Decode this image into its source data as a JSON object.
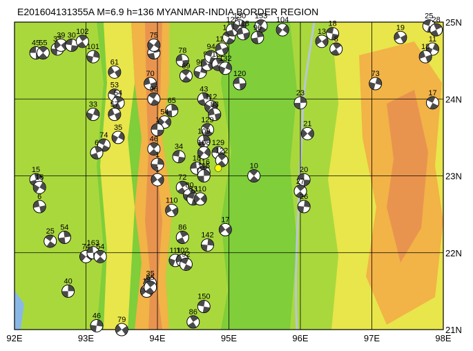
{
  "title": "E201604131355A  M=6.9  h=136  MYANMAR-INDIA BORDER REGION",
  "lon_range": [
    92,
    98
  ],
  "lat_range": [
    21,
    25
  ],
  "x_ticks": [
    {
      "lon": 92,
      "label": "92E"
    },
    {
      "lon": 93,
      "label": "93E"
    },
    {
      "lon": 94,
      "label": "94E"
    },
    {
      "lon": 95,
      "label": "95E"
    },
    {
      "lon": 96,
      "label": "96E"
    },
    {
      "lon": 97,
      "label": "97E"
    },
    {
      "lon": 98,
      "label": "98E"
    }
  ],
  "y_ticks": [
    {
      "lat": 25,
      "label": "25N"
    },
    {
      "lat": 24,
      "label": "24N"
    },
    {
      "lat": 23,
      "label": "23N"
    },
    {
      "lat": 22,
      "label": "22N"
    },
    {
      "lat": 21,
      "label": "21N"
    }
  ],
  "colors": {
    "low_plain": "#7fce3a",
    "mid_plain": "#a9d83d",
    "hills": "#e8e64a",
    "high": "#f2b347",
    "peaks": "#e8944f",
    "sea": "#8ab8e6",
    "river": "#b8c6d8",
    "grid": "#000000",
    "beachball_fill": "#4a4a4a",
    "main_event": "#ffff00"
  },
  "events": [
    {
      "lon": 92.3,
      "lat": 24.6,
      "depth": "45"
    },
    {
      "lon": 92.4,
      "lat": 24.6,
      "depth": "55"
    },
    {
      "lon": 92.6,
      "lat": 24.65,
      "depth": "37"
    },
    {
      "lon": 92.65,
      "lat": 24.7,
      "depth": "39"
    },
    {
      "lon": 92.8,
      "lat": 24.7,
      "depth": "30"
    },
    {
      "lon": 92.95,
      "lat": 24.75,
      "depth": "102"
    },
    {
      "lon": 93.1,
      "lat": 24.55,
      "depth": "101"
    },
    {
      "lon": 93.4,
      "lat": 24.35,
      "depth": "61"
    },
    {
      "lon": 93.4,
      "lat": 24.05,
      "depth": "53"
    },
    {
      "lon": 93.45,
      "lat": 23.95,
      "depth": "54"
    },
    {
      "lon": 93.1,
      "lat": 23.8,
      "depth": "33"
    },
    {
      "lon": 93.4,
      "lat": 23.8,
      "depth": "57"
    },
    {
      "lon": 93.25,
      "lat": 23.4,
      "depth": "74"
    },
    {
      "lon": 93.15,
      "lat": 23.3,
      "depth": "6"
    },
    {
      "lon": 93.45,
      "lat": 23.5,
      "depth": "35"
    },
    {
      "lon": 93.9,
      "lat": 24.2,
      "depth": "70"
    },
    {
      "lon": 93.95,
      "lat": 24.0,
      "depth": "96"
    },
    {
      "lon": 93.95,
      "lat": 24.6,
      "depth": "66"
    },
    {
      "lon": 93.95,
      "lat": 24.7,
      "depth": "75"
    },
    {
      "lon": 94.35,
      "lat": 24.5,
      "depth": "78"
    },
    {
      "lon": 94.4,
      "lat": 24.3,
      "depth": "69"
    },
    {
      "lon": 94.2,
      "lat": 23.85,
      "depth": "65"
    },
    {
      "lon": 94.1,
      "lat": 23.7,
      "depth": "54"
    },
    {
      "lon": 94.0,
      "lat": 23.6,
      "depth": "1"
    },
    {
      "lon": 93.95,
      "lat": 23.35,
      "depth": "46"
    },
    {
      "lon": 94.0,
      "lat": 23.15,
      "depth": "1"
    },
    {
      "lon": 94.0,
      "lat": 22.95,
      "depth": "1"
    },
    {
      "lon": 94.3,
      "lat": 23.25,
      "depth": "34"
    },
    {
      "lon": 94.35,
      "lat": 22.85,
      "depth": "72"
    },
    {
      "lon": 94.45,
      "lat": 22.75,
      "depth": "80"
    },
    {
      "lon": 94.2,
      "lat": 22.55,
      "depth": "110"
    },
    {
      "lon": 94.5,
      "lat": 22.7,
      "depth": "83"
    },
    {
      "lon": 94.35,
      "lat": 22.2,
      "depth": "86"
    },
    {
      "lon": 94.25,
      "lat": 21.9,
      "depth": "111"
    },
    {
      "lon": 94.35,
      "lat": 21.9,
      "depth": "102"
    },
    {
      "lon": 94.4,
      "lat": 21.85,
      "depth": "92"
    },
    {
      "lon": 94.65,
      "lat": 24.0,
      "depth": "43"
    },
    {
      "lon": 94.75,
      "lat": 23.9,
      "depth": "112"
    },
    {
      "lon": 94.8,
      "lat": 23.8,
      "depth": "83"
    },
    {
      "lon": 94.7,
      "lat": 23.6,
      "depth": "129"
    },
    {
      "lon": 94.65,
      "lat": 23.45,
      "depth": "109"
    },
    {
      "lon": 94.65,
      "lat": 23.3,
      "depth": "108"
    },
    {
      "lon": 94.55,
      "lat": 23.1,
      "depth": "18"
    },
    {
      "lon": 94.65,
      "lat": 23.05,
      "depth": "116"
    },
    {
      "lon": 94.65,
      "lat": 23.0,
      "depth": "115"
    },
    {
      "lon": 94.6,
      "lat": 22.7,
      "depth": "110"
    },
    {
      "lon": 94.85,
      "lat": 23.3,
      "depth": "129"
    },
    {
      "lon": 94.9,
      "lat": 23.2,
      "depth": "122"
    },
    {
      "lon": 94.7,
      "lat": 22.1,
      "depth": "142"
    },
    {
      "lon": 94.95,
      "lat": 22.3,
      "depth": "17"
    },
    {
      "lon": 94.65,
      "lat": 21.3,
      "depth": "150"
    },
    {
      "lon": 94.5,
      "lat": 21.1,
      "depth": "86"
    },
    {
      "lon": 94.6,
      "lat": 24.35,
      "depth": "90"
    },
    {
      "lon": 94.7,
      "lat": 24.45,
      "depth": "95"
    },
    {
      "lon": 94.75,
      "lat": 24.55,
      "depth": "94"
    },
    {
      "lon": 94.85,
      "lat": 24.45,
      "depth": "131"
    },
    {
      "lon": 94.95,
      "lat": 24.4,
      "depth": "132"
    },
    {
      "lon": 94.9,
      "lat": 24.65,
      "depth": "116"
    },
    {
      "lon": 95.0,
      "lat": 24.8,
      "depth": "120"
    },
    {
      "lon": 95.05,
      "lat": 24.9,
      "depth": "124"
    },
    {
      "lon": 95.15,
      "lat": 24.95,
      "depth": "130"
    },
    {
      "lon": 95.2,
      "lat": 24.85,
      "depth": "118"
    },
    {
      "lon": 95.45,
      "lat": 24.95,
      "depth": "153"
    },
    {
      "lon": 95.4,
      "lat": 24.8,
      "depth": "96"
    },
    {
      "lon": 95.75,
      "lat": 24.9,
      "depth": "104"
    },
    {
      "lon": 95.15,
      "lat": 24.2,
      "depth": "120"
    },
    {
      "lon": 95.35,
      "lat": 23.0,
      "depth": "10"
    },
    {
      "lon": 96.0,
      "lat": 23.95,
      "depth": "23"
    },
    {
      "lon": 96.1,
      "lat": 23.55,
      "depth": "21"
    },
    {
      "lon": 96.05,
      "lat": 22.95,
      "depth": "20"
    },
    {
      "lon": 96.0,
      "lat": 22.8,
      "depth": "27"
    },
    {
      "lon": 96.05,
      "lat": 22.6,
      "depth": "26"
    },
    {
      "lon": 96.3,
      "lat": 24.75,
      "depth": "13"
    },
    {
      "lon": 96.45,
      "lat": 24.85,
      "depth": "18"
    },
    {
      "lon": 96.5,
      "lat": 24.65,
      "depth": "8"
    },
    {
      "lon": 97.05,
      "lat": 24.2,
      "depth": "73"
    },
    {
      "lon": 97.4,
      "lat": 24.8,
      "depth": "19"
    },
    {
      "lon": 97.8,
      "lat": 24.95,
      "depth": "25"
    },
    {
      "lon": 97.9,
      "lat": 24.9,
      "depth": "28"
    },
    {
      "lon": 97.85,
      "lat": 24.65,
      "depth": "11"
    },
    {
      "lon": 97.75,
      "lat": 24.55,
      "depth": "18"
    },
    {
      "lon": 97.85,
      "lat": 23.95,
      "depth": "17"
    },
    {
      "lon": 92.3,
      "lat": 22.95,
      "depth": "15"
    },
    {
      "lon": 92.35,
      "lat": 22.85,
      "depth": "15"
    },
    {
      "lon": 92.35,
      "lat": 22.6,
      "depth": "6"
    },
    {
      "lon": 92.5,
      "lat": 22.15,
      "depth": "25"
    },
    {
      "lon": 92.7,
      "lat": 22.2,
      "depth": "54"
    },
    {
      "lon": 93.0,
      "lat": 21.95,
      "depth": "74"
    },
    {
      "lon": 93.1,
      "lat": 22.0,
      "depth": "163"
    },
    {
      "lon": 93.2,
      "lat": 21.95,
      "depth": "54"
    },
    {
      "lon": 92.75,
      "lat": 21.5,
      "depth": "40"
    },
    {
      "lon": 93.85,
      "lat": 21.5,
      "depth": "17"
    },
    {
      "lon": 93.9,
      "lat": 21.6,
      "depth": "35"
    },
    {
      "lon": 93.9,
      "lat": 21.55,
      "depth": "65"
    },
    {
      "lon": 93.15,
      "lat": 21.05,
      "depth": "46"
    },
    {
      "lon": 93.5,
      "lat": 21.0,
      "depth": "79"
    }
  ],
  "main_event": {
    "lon": 94.85,
    "lat": 23.1
  }
}
